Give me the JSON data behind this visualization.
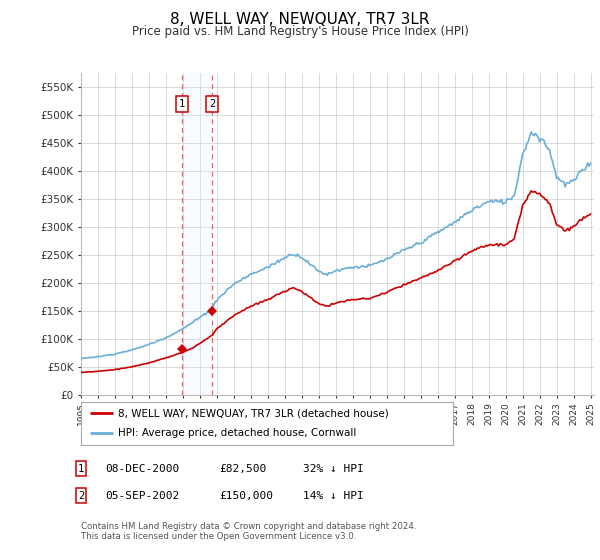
{
  "title": "8, WELL WAY, NEWQUAY, TR7 3LR",
  "subtitle": "Price paid vs. HM Land Registry's House Price Index (HPI)",
  "ylim": [
    0,
    575000
  ],
  "yticks": [
    0,
    50000,
    100000,
    150000,
    200000,
    250000,
    300000,
    350000,
    400000,
    450000,
    500000,
    550000
  ],
  "ytick_labels": [
    "£0",
    "£50K",
    "£100K",
    "£150K",
    "£200K",
    "£250K",
    "£300K",
    "£350K",
    "£400K",
    "£450K",
    "£500K",
    "£550K"
  ],
  "hpi_color": "#6baed6",
  "price_color": "#cc0000",
  "shading_color": "#ddeeff",
  "sale1_date": "08-DEC-2000",
  "sale1_price": 82500,
  "sale1_pct": "32% ↓ HPI",
  "sale2_date": "05-SEP-2002",
  "sale2_price": 150000,
  "sale2_pct": "14% ↓ HPI",
  "legend_label1": "8, WELL WAY, NEWQUAY, TR7 3LR (detached house)",
  "legend_label2": "HPI: Average price, detached house, Cornwall",
  "footer": "Contains HM Land Registry data © Crown copyright and database right 2024.\nThis data is licensed under the Open Government Licence v3.0.",
  "background_color": "#ffffff",
  "grid_color": "#cccccc"
}
